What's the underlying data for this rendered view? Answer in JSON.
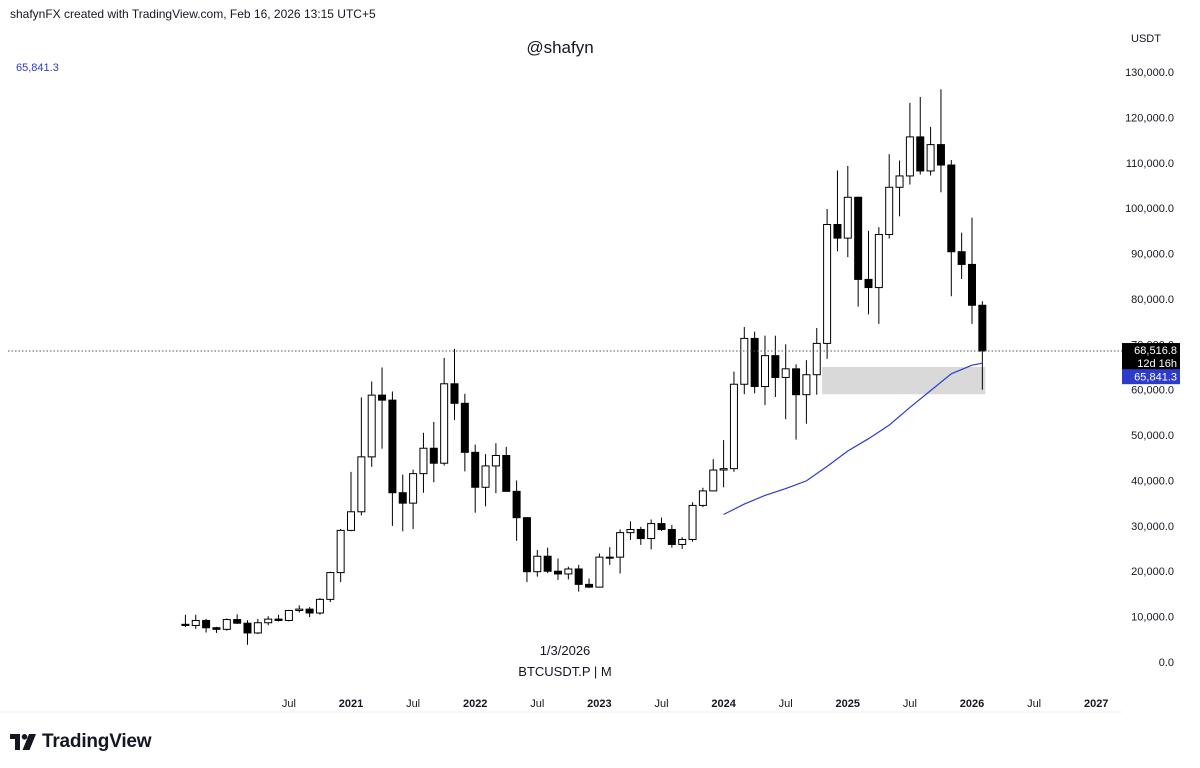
{
  "header": {
    "credit": "shafynFX created with TradingView.com, Feb 16, 2026 13:15 UTC+5",
    "watermark": "@shafyn"
  },
  "legend": {
    "ma_value": "65,841.3",
    "ma_color": "#2c3cc9"
  },
  "info": {
    "date": "1/3/2026",
    "symbol": "BTCUSDT.P | M"
  },
  "footer": {
    "logo_icon": "tradingview-logo-icon",
    "brand": "TradingView"
  },
  "chart_data": {
    "type": "candlestick",
    "symbol": "BTCUSDT.P",
    "interval": "M",
    "currency": "USDT",
    "ylim": [
      0,
      130000
    ],
    "yticks": [
      "130,000.0",
      "120,000.0",
      "110,000.0",
      "100,000.0",
      "90,000.0",
      "80,000.0",
      "70,000.0",
      "60,000.0",
      "50,000.0",
      "40,000.0",
      "30,000.0",
      "20,000.0",
      "10,000.0",
      "0.0"
    ],
    "ytick_values": [
      130000,
      120000,
      110000,
      100000,
      90000,
      80000,
      70000,
      60000,
      50000,
      40000,
      30000,
      20000,
      10000,
      0
    ],
    "xticks": [
      {
        "label": "Jul",
        "month": "2020-07",
        "bold": false
      },
      {
        "label": "2021",
        "month": "2021-01",
        "bold": true
      },
      {
        "label": "Jul",
        "month": "2021-07",
        "bold": false
      },
      {
        "label": "2022",
        "month": "2022-01",
        "bold": true
      },
      {
        "label": "Jul",
        "month": "2022-07",
        "bold": false
      },
      {
        "label": "2023",
        "month": "2023-01",
        "bold": true
      },
      {
        "label": "Jul",
        "month": "2023-07",
        "bold": false
      },
      {
        "label": "2024",
        "month": "2024-01",
        "bold": true
      },
      {
        "label": "Jul",
        "month": "2024-07",
        "bold": false
      },
      {
        "label": "2025",
        "month": "2025-01",
        "bold": true
      },
      {
        "label": "Jul",
        "month": "2025-07",
        "bold": false
      },
      {
        "label": "2026",
        "month": "2026-01",
        "bold": true
      },
      {
        "label": "Jul",
        "month": "2026-07",
        "bold": false
      },
      {
        "label": "2027",
        "month": "2027-01",
        "bold": true
      }
    ],
    "candles": [
      {
        "t": "2019-09",
        "o": 8300,
        "h": 10400,
        "l": 7700,
        "c": 8050
      },
      {
        "t": "2019-10",
        "o": 8050,
        "h": 10400,
        "l": 7300,
        "c": 9150
      },
      {
        "t": "2019-11",
        "o": 9150,
        "h": 9500,
        "l": 6500,
        "c": 7550
      },
      {
        "t": "2019-12",
        "o": 7550,
        "h": 7750,
        "l": 6400,
        "c": 7200
      },
      {
        "t": "2020-01",
        "o": 7200,
        "h": 9600,
        "l": 6900,
        "c": 9350
      },
      {
        "t": "2020-02",
        "o": 9350,
        "h": 10500,
        "l": 8400,
        "c": 8550
      },
      {
        "t": "2020-03",
        "o": 8550,
        "h": 9200,
        "l": 3800,
        "c": 6400
      },
      {
        "t": "2020-04",
        "o": 6400,
        "h": 9500,
        "l": 6150,
        "c": 8650
      },
      {
        "t": "2020-05",
        "o": 8650,
        "h": 10100,
        "l": 8100,
        "c": 9450
      },
      {
        "t": "2020-06",
        "o": 9450,
        "h": 10400,
        "l": 8900,
        "c": 9150
      },
      {
        "t": "2020-07",
        "o": 9150,
        "h": 11500,
        "l": 8950,
        "c": 11350
      },
      {
        "t": "2020-08",
        "o": 11350,
        "h": 12500,
        "l": 10900,
        "c": 11650
      },
      {
        "t": "2020-09",
        "o": 11650,
        "h": 12100,
        "l": 9900,
        "c": 10800
      },
      {
        "t": "2020-10",
        "o": 10800,
        "h": 14100,
        "l": 10400,
        "c": 13800
      },
      {
        "t": "2020-11",
        "o": 13800,
        "h": 19900,
        "l": 13200,
        "c": 19700
      },
      {
        "t": "2020-12",
        "o": 19700,
        "h": 29300,
        "l": 17600,
        "c": 29000
      },
      {
        "t": "2021-01",
        "o": 29000,
        "h": 41900,
        "l": 28800,
        "c": 33100
      },
      {
        "t": "2021-02",
        "o": 33100,
        "h": 58300,
        "l": 32300,
        "c": 45200
      },
      {
        "t": "2021-03",
        "o": 45200,
        "h": 61800,
        "l": 43000,
        "c": 58800
      },
      {
        "t": "2021-04",
        "o": 58800,
        "h": 64900,
        "l": 47000,
        "c": 57700
      },
      {
        "t": "2021-05",
        "o": 57700,
        "h": 59600,
        "l": 30000,
        "c": 37300
      },
      {
        "t": "2021-06",
        "o": 37300,
        "h": 41300,
        "l": 28800,
        "c": 35000
      },
      {
        "t": "2021-07",
        "o": 35000,
        "h": 42400,
        "l": 29300,
        "c": 41500
      },
      {
        "t": "2021-08",
        "o": 41500,
        "h": 50500,
        "l": 37300,
        "c": 47100
      },
      {
        "t": "2021-09",
        "o": 47100,
        "h": 52900,
        "l": 39600,
        "c": 43800
      },
      {
        "t": "2021-10",
        "o": 43800,
        "h": 67000,
        "l": 43300,
        "c": 61300
      },
      {
        "t": "2021-11",
        "o": 61300,
        "h": 69000,
        "l": 53300,
        "c": 57000
      },
      {
        "t": "2021-12",
        "o": 57000,
        "h": 59100,
        "l": 42000,
        "c": 46200
      },
      {
        "t": "2022-01",
        "o": 46200,
        "h": 47900,
        "l": 32900,
        "c": 38500
      },
      {
        "t": "2022-02",
        "o": 38500,
        "h": 45800,
        "l": 34300,
        "c": 43200
      },
      {
        "t": "2022-03",
        "o": 43200,
        "h": 48200,
        "l": 37200,
        "c": 45500
      },
      {
        "t": "2022-04",
        "o": 45500,
        "h": 47400,
        "l": 37600,
        "c": 37600
      },
      {
        "t": "2022-05",
        "o": 37600,
        "h": 40000,
        "l": 26700,
        "c": 31800
      },
      {
        "t": "2022-06",
        "o": 31800,
        "h": 31900,
        "l": 17600,
        "c": 19900
      },
      {
        "t": "2022-07",
        "o": 19900,
        "h": 24700,
        "l": 18800,
        "c": 23300
      },
      {
        "t": "2022-08",
        "o": 23300,
        "h": 25200,
        "l": 19600,
        "c": 20000
      },
      {
        "t": "2022-09",
        "o": 20000,
        "h": 22800,
        "l": 18100,
        "c": 19400
      },
      {
        "t": "2022-10",
        "o": 19400,
        "h": 21000,
        "l": 18200,
        "c": 20500
      },
      {
        "t": "2022-11",
        "o": 20500,
        "h": 21400,
        "l": 15500,
        "c": 17100
      },
      {
        "t": "2022-12",
        "o": 17100,
        "h": 18400,
        "l": 16300,
        "c": 16500
      },
      {
        "t": "2023-01",
        "o": 16500,
        "h": 23900,
        "l": 16500,
        "c": 23100
      },
      {
        "t": "2023-02",
        "o": 23100,
        "h": 25300,
        "l": 21400,
        "c": 23100
      },
      {
        "t": "2023-03",
        "o": 23100,
        "h": 29200,
        "l": 19500,
        "c": 28500
      },
      {
        "t": "2023-04",
        "o": 28500,
        "h": 31000,
        "l": 26900,
        "c": 29200
      },
      {
        "t": "2023-05",
        "o": 29200,
        "h": 29800,
        "l": 25800,
        "c": 27200
      },
      {
        "t": "2023-06",
        "o": 27200,
        "h": 31400,
        "l": 24800,
        "c": 30500
      },
      {
        "t": "2023-07",
        "o": 30500,
        "h": 31800,
        "l": 28900,
        "c": 29200
      },
      {
        "t": "2023-08",
        "o": 29200,
        "h": 30200,
        "l": 25200,
        "c": 25900
      },
      {
        "t": "2023-09",
        "o": 25900,
        "h": 27500,
        "l": 24900,
        "c": 27000
      },
      {
        "t": "2023-10",
        "o": 27000,
        "h": 35200,
        "l": 26500,
        "c": 34500
      },
      {
        "t": "2023-11",
        "o": 34500,
        "h": 38400,
        "l": 34100,
        "c": 37700
      },
      {
        "t": "2023-12",
        "o": 37700,
        "h": 44700,
        "l": 37600,
        "c": 42300
      },
      {
        "t": "2024-01",
        "o": 42300,
        "h": 48900,
        "l": 38500,
        "c": 42600
      },
      {
        "t": "2024-02",
        "o": 42600,
        "h": 64000,
        "l": 41900,
        "c": 61200
      },
      {
        "t": "2024-03",
        "o": 61200,
        "h": 73800,
        "l": 59000,
        "c": 71300
      },
      {
        "t": "2024-04",
        "o": 71300,
        "h": 72800,
        "l": 59200,
        "c": 60700
      },
      {
        "t": "2024-05",
        "o": 60700,
        "h": 71900,
        "l": 56600,
        "c": 67500
      },
      {
        "t": "2024-06",
        "o": 67500,
        "h": 71900,
        "l": 58400,
        "c": 62700
      },
      {
        "t": "2024-07",
        "o": 62700,
        "h": 70000,
        "l": 53500,
        "c": 64600
      },
      {
        "t": "2024-08",
        "o": 64600,
        "h": 65600,
        "l": 49000,
        "c": 58900
      },
      {
        "t": "2024-09",
        "o": 58900,
        "h": 66500,
        "l": 52500,
        "c": 63300
      },
      {
        "t": "2024-10",
        "o": 63300,
        "h": 73600,
        "l": 58900,
        "c": 70200
      },
      {
        "t": "2024-11",
        "o": 70200,
        "h": 99800,
        "l": 66800,
        "c": 96400
      },
      {
        "t": "2024-12",
        "o": 96400,
        "h": 108300,
        "l": 90500,
        "c": 93400
      },
      {
        "t": "2025-01",
        "o": 93400,
        "h": 109300,
        "l": 89200,
        "c": 102400
      },
      {
        "t": "2025-02",
        "o": 102400,
        "h": 102500,
        "l": 78300,
        "c": 84300
      },
      {
        "t": "2025-03",
        "o": 84300,
        "h": 95000,
        "l": 76600,
        "c": 82500
      },
      {
        "t": "2025-04",
        "o": 82500,
        "h": 95800,
        "l": 74500,
        "c": 94200
      },
      {
        "t": "2025-05",
        "o": 94200,
        "h": 111900,
        "l": 93300,
        "c": 104600
      },
      {
        "t": "2025-06",
        "o": 104600,
        "h": 110500,
        "l": 98200,
        "c": 107100
      },
      {
        "t": "2025-07",
        "o": 107100,
        "h": 123200,
        "l": 105200,
        "c": 115700
      },
      {
        "t": "2025-08",
        "o": 115700,
        "h": 124500,
        "l": 107400,
        "c": 108200
      },
      {
        "t": "2025-09",
        "o": 108200,
        "h": 117900,
        "l": 107200,
        "c": 114000
      },
      {
        "t": "2025-10",
        "o": 114000,
        "h": 126200,
        "l": 103500,
        "c": 109500
      },
      {
        "t": "2025-11",
        "o": 109500,
        "h": 110600,
        "l": 80600,
        "c": 90400
      },
      {
        "t": "2025-12",
        "o": 90400,
        "h": 94600,
        "l": 84400,
        "c": 87600
      },
      {
        "t": "2026-01",
        "o": 87600,
        "h": 97900,
        "l": 74500,
        "c": 78600
      },
      {
        "t": "2026-02",
        "o": 78600,
        "h": 79500,
        "l": 60000,
        "c": 68516.8
      }
    ],
    "moving_average": {
      "color": "#2c3cc9",
      "last_value": 65841.3,
      "points": [
        {
          "t": "2024-01",
          "v": 32500
        },
        {
          "t": "2024-03",
          "v": 34800
        },
        {
          "t": "2024-05",
          "v": 36700
        },
        {
          "t": "2024-07",
          "v": 38200
        },
        {
          "t": "2024-09",
          "v": 39900
        },
        {
          "t": "2024-11",
          "v": 43100
        },
        {
          "t": "2025-01",
          "v": 46500
        },
        {
          "t": "2025-03",
          "v": 49200
        },
        {
          "t": "2025-05",
          "v": 52200
        },
        {
          "t": "2025-07",
          "v": 56100
        },
        {
          "t": "2025-09",
          "v": 59800
        },
        {
          "t": "2025-11",
          "v": 63500
        },
        {
          "t": "2026-01",
          "v": 65400
        },
        {
          "t": "2026-02",
          "v": 65841.3
        }
      ]
    },
    "zone": {
      "from": "2024-11",
      "to": "2026-02",
      "top": 65000,
      "bottom": 59000,
      "color": "#d9d9d9"
    },
    "price_line": {
      "value": 68516.8,
      "style": "dotted"
    },
    "labels": {
      "price": "68,516.8",
      "countdown": "12d 16h",
      "ma": "65,841.3",
      "price_bg": "#000000",
      "ma_bg": "#2c3cc9"
    }
  }
}
